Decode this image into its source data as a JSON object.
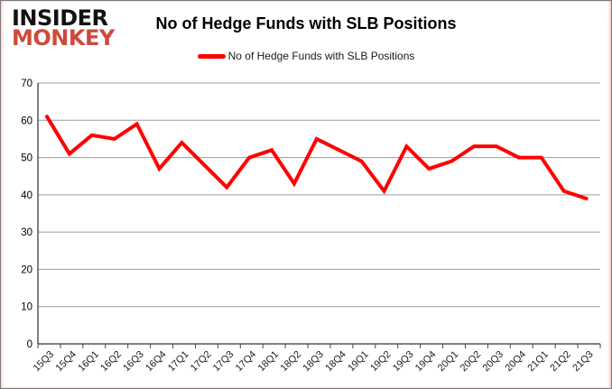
{
  "logo": {
    "line1": "INSIDER",
    "line2": "MONKEY",
    "line1_color": "#121212",
    "line2_color": "#ce4a3b"
  },
  "header": {
    "title": "No of Hedge Funds with SLB Positions"
  },
  "legend": {
    "label": "No of Hedge Funds with SLB Positions",
    "swatch_color": "#ff0000"
  },
  "chart_data": {
    "type": "line",
    "title": "No of Hedge Funds with SLB Positions",
    "categories": [
      "15Q3",
      "15Q4",
      "16Q1",
      "16Q2",
      "16Q3",
      "16Q4",
      "17Q1",
      "17Q2",
      "17Q3",
      "17Q4",
      "18Q1",
      "18Q2",
      "18Q3",
      "18Q4",
      "19Q1",
      "19Q2",
      "19Q3",
      "19Q4",
      "20Q1",
      "20Q2",
      "20Q3",
      "20Q4",
      "21Q1",
      "21Q2",
      "21Q3"
    ],
    "series": [
      {
        "name": "No of Hedge Funds with SLB Positions",
        "color": "#ff0000",
        "values": [
          61,
          51,
          56,
          55,
          59,
          47,
          54,
          48,
          42,
          50,
          52,
          43,
          55,
          52,
          49,
          41,
          53,
          47,
          49,
          53,
          53,
          50,
          50,
          41,
          39
        ]
      }
    ],
    "xlabel": "",
    "ylabel": "",
    "ylim": [
      0,
      70
    ],
    "yticks": [
      0,
      10,
      20,
      30,
      40,
      50,
      60,
      70
    ],
    "grid": "horizontal",
    "grid_color": "#9c9c9c",
    "axis_color": "#000000",
    "legend_position": "top-center"
  }
}
